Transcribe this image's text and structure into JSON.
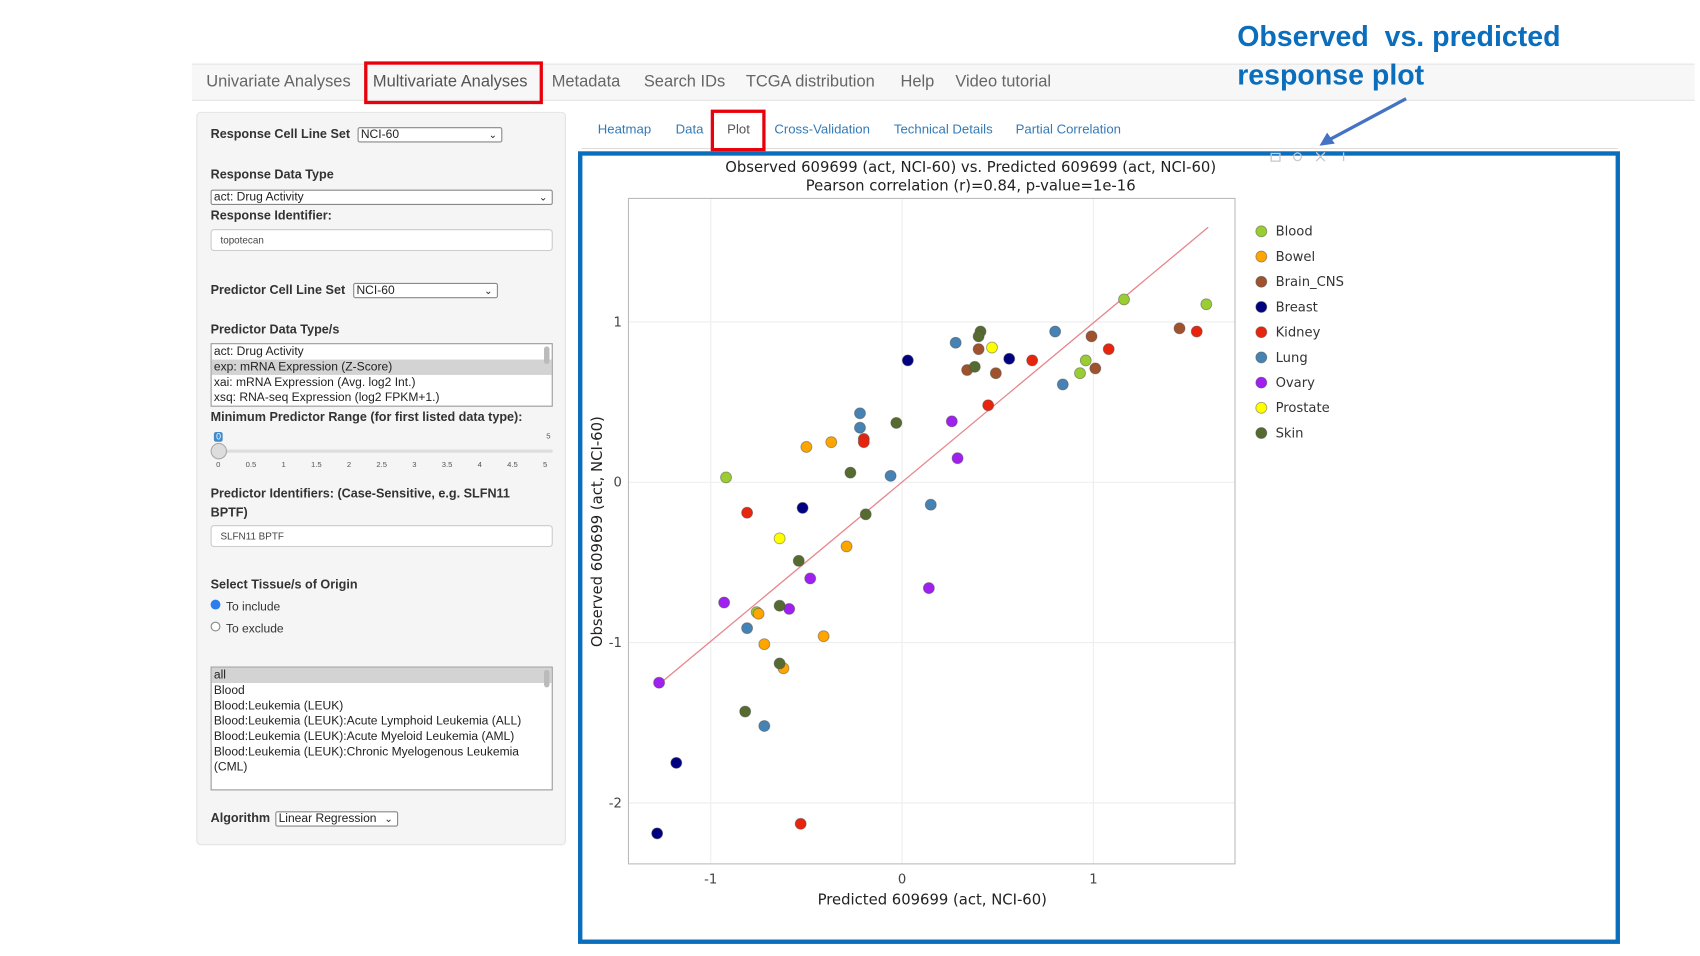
{
  "nav": {
    "items": [
      "Univariate Analyses",
      "Multivariate Analyses",
      "Metadata",
      "Search IDs",
      "TCGA distribution",
      "Help",
      "Video tutorial"
    ],
    "active": "Multivariate Analyses"
  },
  "annotation": {
    "line1": "Observed  vs. predicted",
    "line2": "response plot"
  },
  "sidebar": {
    "response_cell_line_set_label": "Response Cell Line Set",
    "response_cell_line_set_value": "NCI-60",
    "response_data_type_label": "Response Data Type",
    "response_data_type_value": "act: Drug Activity",
    "response_identifier_label": "Response Identifier:",
    "response_identifier_value": "topotecan",
    "predictor_cell_line_set_label": "Predictor Cell Line Set",
    "predictor_cell_line_set_value": "NCI-60",
    "predictor_data_types_label": "Predictor Data Type/s",
    "predictor_data_types": [
      "act: Drug Activity",
      "exp: mRNA Expression (Z-Score)",
      "xai: mRNA Expression (Avg. log2 Int.)",
      "xsq: RNA-seq Expression (log2 FPKM+1.)"
    ],
    "predictor_data_types_selected": "exp: mRNA Expression (Z-Score)",
    "min_range_label": "Minimum Predictor Range (for first listed data type):",
    "min_range_value": "0",
    "min_range_max": "5",
    "min_range_ticks": [
      "0",
      "0.5",
      "1",
      "1.5",
      "2",
      "2.5",
      "3",
      "3.5",
      "4",
      "4.5",
      "5"
    ],
    "predictor_identifiers_label": "Predictor Identifiers: (Case-Sensitive, e.g. SLFN11 BPTF)",
    "predictor_identifiers_value": "SLFN11 BPTF",
    "tissue_label": "Select Tissue/s of Origin",
    "tissue_include": "To include",
    "tissue_exclude": "To exclude",
    "tissue_mode": "To include",
    "tissues": [
      "all",
      "Blood",
      "Blood:Leukemia (LEUK)",
      "Blood:Leukemia (LEUK):Acute Lymphoid Leukemia (ALL)",
      "Blood:Leukemia (LEUK):Acute Myeloid Leukemia (AML)",
      "Blood:Leukemia (LEUK):Chronic Myelogenous Leukemia (CML)"
    ],
    "tissues_selected": "all",
    "algorithm_label": "Algorithm",
    "algorithm_value": "Linear Regression"
  },
  "tabs": {
    "items": [
      "Heatmap",
      "Data",
      "Plot",
      "Cross-Validation",
      "Technical Details",
      "Partial Correlation"
    ],
    "active": "Plot"
  },
  "chart_data": {
    "type": "scatter",
    "title": "Observed 609699 (act, NCI-60) vs. Predicted 609699 (act, NCI-60)",
    "subtitle": "Pearson correlation (r)=0.84, p-value=1e-16",
    "xlabel": "Predicted 609699 (act, NCI-60)",
    "ylabel": "Observed 609699 (act, NCI-60)",
    "xlim": [
      -1.43,
      1.74
    ],
    "ylim": [
      -2.38,
      1.77
    ],
    "xticks": [
      -1,
      0,
      1
    ],
    "yticks": [
      -2,
      -1,
      0,
      1
    ],
    "grid": true,
    "legend_position": "right",
    "fit_line": {
      "color": "#e8868c",
      "points": [
        [
          -1.27,
          -1.26
        ],
        [
          1.6,
          1.59
        ]
      ]
    },
    "series": [
      {
        "name": "Blood",
        "color": "#9acd32",
        "points": [
          [
            -0.92,
            0.03
          ],
          [
            -0.76,
            -0.81
          ],
          [
            1.16,
            1.14
          ],
          [
            1.59,
            1.11
          ],
          [
            0.96,
            0.76
          ],
          [
            0.93,
            0.68
          ]
        ]
      },
      {
        "name": "Bowel",
        "color": "#ffa500",
        "points": [
          [
            -0.5,
            0.22
          ],
          [
            -0.37,
            0.25
          ],
          [
            -0.29,
            -0.4
          ],
          [
            -0.75,
            -0.82
          ],
          [
            -0.41,
            -0.96
          ],
          [
            -0.72,
            -1.01
          ],
          [
            -0.62,
            -1.16
          ]
        ]
      },
      {
        "name": "Brain_CNS",
        "color": "#a0522d",
        "points": [
          [
            0.99,
            0.91
          ],
          [
            1.01,
            0.71
          ],
          [
            1.45,
            0.96
          ],
          [
            0.4,
            0.83
          ],
          [
            0.34,
            0.7
          ],
          [
            0.49,
            0.68
          ]
        ]
      },
      {
        "name": "Breast",
        "color": "#000080",
        "points": [
          [
            -0.52,
            -0.16
          ],
          [
            0.03,
            0.76
          ],
          [
            0.56,
            0.77
          ],
          [
            -1.18,
            -1.75
          ],
          [
            -1.28,
            -2.19
          ]
        ]
      },
      {
        "name": "Kidney",
        "color": "#e8250c",
        "points": [
          [
            -0.81,
            -0.19
          ],
          [
            -0.2,
            0.27
          ],
          [
            -0.2,
            0.25
          ],
          [
            0.45,
            0.48
          ],
          [
            0.68,
            0.76
          ],
          [
            1.08,
            0.83
          ],
          [
            1.54,
            0.94
          ],
          [
            -0.53,
            -2.13
          ]
        ]
      },
      {
        "name": "Lung",
        "color": "#4682b4",
        "points": [
          [
            -0.22,
            0.43
          ],
          [
            -0.22,
            0.34
          ],
          [
            -0.06,
            0.04
          ],
          [
            0.15,
            -0.14
          ],
          [
            0.28,
            0.87
          ],
          [
            0.8,
            0.94
          ],
          [
            0.84,
            0.61
          ],
          [
            -0.81,
            -0.91
          ],
          [
            -0.72,
            -1.52
          ]
        ]
      },
      {
        "name": "Ovary",
        "color": "#a020f0",
        "points": [
          [
            0.26,
            0.38
          ],
          [
            0.29,
            0.15
          ],
          [
            0.14,
            -0.66
          ],
          [
            -0.48,
            -0.6
          ],
          [
            -0.93,
            -0.75
          ],
          [
            -0.59,
            -0.79
          ],
          [
            -1.27,
            -1.25
          ]
        ]
      },
      {
        "name": "Prostate",
        "color": "#ffff00",
        "points": [
          [
            -0.64,
            -0.35
          ],
          [
            0.47,
            0.84
          ]
        ]
      },
      {
        "name": "Skin",
        "color": "#556b2f",
        "points": [
          [
            -0.27,
            0.06
          ],
          [
            -0.19,
            -0.2
          ],
          [
            -0.54,
            -0.49
          ],
          [
            -0.64,
            -0.77
          ],
          [
            -0.64,
            -1.13
          ],
          [
            -0.82,
            -1.43
          ],
          [
            0.41,
            0.94
          ],
          [
            0.4,
            0.91
          ],
          [
            0.38,
            0.72
          ],
          [
            -0.03,
            0.37
          ]
        ]
      }
    ]
  },
  "colors": {
    "highlight_red": "#e8000b",
    "frame_blue": "#0a6ebd",
    "link_blue": "#337ab7"
  }
}
